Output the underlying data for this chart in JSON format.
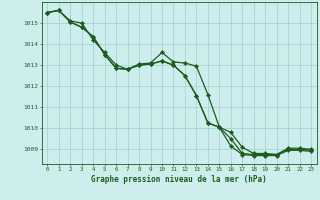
{
  "title": "Graphe pression niveau de la mer (hPa)",
  "background_color": "#ceeeed",
  "grid_color": "#aad8d8",
  "line_color": "#1e5c1e",
  "marker_color": "#1e5c1e",
  "xlim": [
    -0.5,
    23.5
  ],
  "ylim": [
    1008.3,
    1016.0
  ],
  "yticks": [
    1009,
    1010,
    1011,
    1012,
    1013,
    1014,
    1015
  ],
  "xticks": [
    0,
    1,
    2,
    3,
    4,
    5,
    6,
    7,
    8,
    9,
    10,
    11,
    12,
    13,
    14,
    15,
    16,
    17,
    18,
    19,
    20,
    21,
    22,
    23
  ],
  "line1": [
    1015.5,
    1015.6,
    1015.1,
    1015.0,
    1014.2,
    1013.6,
    1013.0,
    1012.8,
    1013.05,
    1013.1,
    1013.6,
    1013.15,
    1013.1,
    1012.95,
    1011.6,
    1010.05,
    1009.8,
    1009.1,
    1008.8,
    1008.8,
    1008.75,
    1009.05,
    1009.05,
    1009.0
  ],
  "line2": [
    1015.5,
    1015.6,
    1015.05,
    1014.8,
    1014.35,
    1013.5,
    1012.85,
    1012.8,
    1013.0,
    1013.05,
    1013.2,
    1013.0,
    1012.5,
    1011.55,
    1010.25,
    1010.05,
    1009.5,
    1008.8,
    1008.75,
    1008.75,
    1008.75,
    1009.0,
    1009.0,
    1008.95
  ],
  "line3": [
    1015.5,
    1015.6,
    1015.05,
    1014.8,
    1014.35,
    1013.5,
    1012.85,
    1012.8,
    1013.0,
    1013.05,
    1013.2,
    1013.0,
    1012.5,
    1011.55,
    1010.25,
    1010.05,
    1009.15,
    1008.75,
    1008.7,
    1008.7,
    1008.7,
    1008.95,
    1008.95,
    1008.9
  ]
}
